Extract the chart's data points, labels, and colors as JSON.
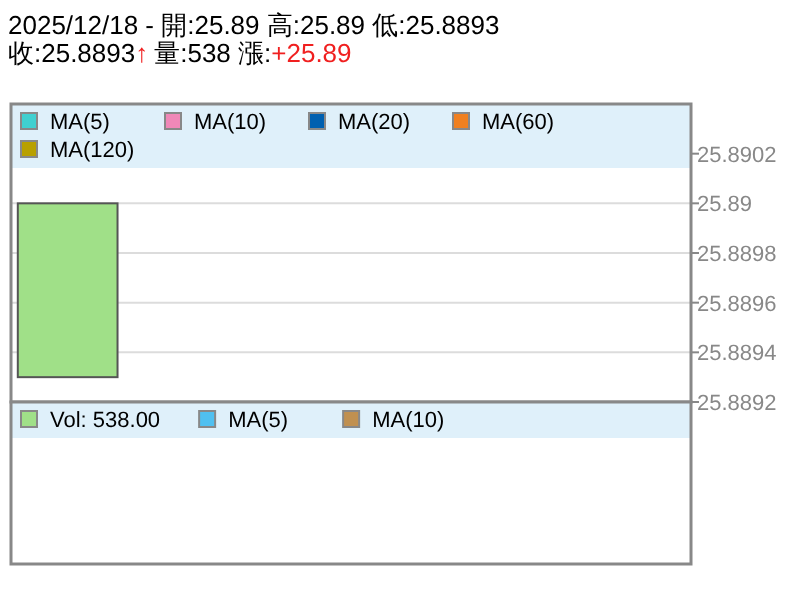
{
  "chart_data": [
    {
      "type": "candlestick",
      "title": "2025/12/18 - 開:25.89 高:25.89 低:25.8893",
      "annotations": [
        "收:25.8893",
        "↑",
        "量:538 漲:",
        "+25.89"
      ],
      "categories": [
        null,
        null,
        null,
        null,
        null,
        null
      ],
      "ohlc": [
        [
          25.89,
          25.89,
          25.8893,
          25.8893
        ],
        null,
        null,
        null,
        null,
        null
      ],
      "colors": [
        "#a0e088",
        null,
        null,
        null,
        null,
        null
      ],
      "series": [
        {
          "name": "MA(5)",
          "color": "#40d0d0",
          "values": [
            null,
            null,
            null,
            null,
            null,
            null
          ]
        },
        {
          "name": "MA(10)",
          "color": "#f088b8",
          "values": [
            null,
            null,
            null,
            null,
            null,
            null
          ]
        },
        {
          "name": "MA(20)",
          "color": "#0060b0",
          "values": [
            null,
            null,
            null,
            null,
            null,
            null
          ]
        },
        {
          "name": "MA(60)",
          "color": "#f08020",
          "values": [
            null,
            null,
            null,
            null,
            null,
            null
          ]
        },
        {
          "name": "MA(120)",
          "color": "#b8a000",
          "values": [
            null,
            null,
            null,
            null,
            null,
            null
          ]
        }
      ],
      "ylim": [
        25.8892,
        25.8904
      ],
      "yticks": [
        25.8892,
        25.8894,
        25.8896,
        25.8898,
        25.89,
        25.8902
      ],
      "grid": "y",
      "legend": "top"
    },
    {
      "type": "other",
      "series": [
        {
          "name": "Vol: 538.00",
          "color": "#a0e088"
        },
        {
          "name": "MA(5)",
          "color": "#50c0f0"
        },
        {
          "name": "MA(10)",
          "color": "#c09050"
        }
      ],
      "legend": "top"
    }
  ]
}
